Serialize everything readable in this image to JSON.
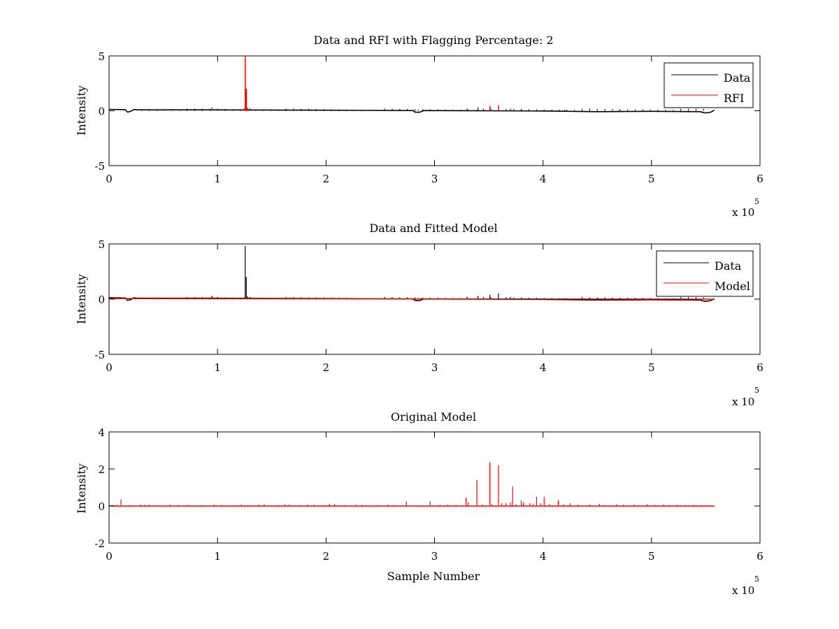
{
  "figure": {
    "background": "#ffffff"
  },
  "colors": {
    "data": "#000000",
    "rfi": "#ff0000",
    "model": "#ff0000"
  },
  "chart_data": [
    {
      "type": "line",
      "title": "Data and RFI with Flagging Percentage: 2",
      "xlabel": "",
      "ylabel": "Intensity",
      "xlim": [
        0,
        600000
      ],
      "ylim": [
        -5,
        5
      ],
      "xticks": [
        0,
        1,
        2,
        3,
        4,
        5,
        6
      ],
      "yticks": [
        -5,
        0,
        5
      ],
      "x_exponent": {
        "prefix": "x 10",
        "power": "5"
      },
      "grid": false,
      "legend": "top-right",
      "legend_entries": [
        "Data",
        "RFI"
      ],
      "series": [
        {
          "name": "Data",
          "color": "#000000",
          "baseline": [
            [
              0,
              0.13
            ],
            [
              15000,
              0.1
            ],
            [
              17000,
              -0.12
            ],
            [
              20000,
              -0.05
            ],
            [
              23000,
              0.12
            ],
            [
              26000,
              0.08
            ],
            [
              90000,
              0.08
            ],
            [
              200000,
              0.05
            ],
            [
              280000,
              0.02
            ],
            [
              282000,
              -0.12
            ],
            [
              286000,
              -0.14
            ],
            [
              290000,
              0.02
            ],
            [
              300000,
              0.01
            ],
            [
              400000,
              -0.02
            ],
            [
              450000,
              -0.08
            ],
            [
              500000,
              -0.05
            ],
            [
              545000,
              -0.08
            ],
            [
              549000,
              -0.2
            ],
            [
              554000,
              -0.15
            ],
            [
              558000,
              0.05
            ]
          ],
          "end_x": 558000,
          "spikes": [
            [
              95000,
              0.3
            ],
            [
              100000,
              0.2
            ],
            [
              125500,
              4.8
            ],
            [
              126500,
              2.0
            ],
            [
              127500,
              0.25
            ],
            [
              130000,
              0.2
            ],
            [
              285000,
              0.1
            ],
            [
              330000,
              0.2
            ],
            [
              340000,
              0.3
            ],
            [
              351000,
              0.4
            ],
            [
              359000,
              0.5
            ],
            [
              370000,
              0.2
            ],
            [
              380000,
              0.15
            ],
            [
              420000,
              0.1
            ],
            [
              470000,
              0.05
            ]
          ]
        },
        {
          "name": "RFI",
          "color": "#ff0000",
          "baseline": [],
          "spikes": [
            [
              95000,
              0.25
            ],
            [
              100000,
              0.15
            ],
            [
              124500,
              0.2
            ],
            [
              125500,
              5.0
            ],
            [
              126500,
              2.0
            ],
            [
              127500,
              0.3
            ],
            [
              128500,
              0.15
            ],
            [
              351000,
              0.45
            ],
            [
              359000,
              0.45
            ],
            [
              370000,
              0.1
            ]
          ]
        }
      ]
    },
    {
      "type": "line",
      "title": "Data and Fitted Model",
      "xlabel": "",
      "ylabel": "Intensity",
      "xlim": [
        0,
        600000
      ],
      "ylim": [
        -5,
        5
      ],
      "xticks": [
        0,
        1,
        2,
        3,
        4,
        5,
        6
      ],
      "yticks": [
        -5,
        0,
        5
      ],
      "x_exponent": {
        "prefix": "x 10",
        "power": "5"
      },
      "grid": false,
      "legend": "top-right",
      "legend_entries": [
        "Data",
        "Model"
      ],
      "series": [
        {
          "name": "Data",
          "color": "#000000",
          "baseline": [
            [
              0,
              0.13
            ],
            [
              15000,
              0.1
            ],
            [
              17000,
              -0.12
            ],
            [
              20000,
              -0.05
            ],
            [
              23000,
              0.12
            ],
            [
              26000,
              0.08
            ],
            [
              90000,
              0.08
            ],
            [
              200000,
              0.05
            ],
            [
              280000,
              0.02
            ],
            [
              282000,
              -0.12
            ],
            [
              286000,
              -0.14
            ],
            [
              290000,
              0.02
            ],
            [
              300000,
              0.01
            ],
            [
              400000,
              -0.02
            ],
            [
              450000,
              -0.08
            ],
            [
              500000,
              -0.05
            ],
            [
              545000,
              -0.08
            ],
            [
              549000,
              -0.2
            ],
            [
              554000,
              -0.15
            ],
            [
              558000,
              0.05
            ]
          ],
          "end_x": 558000,
          "spikes": [
            [
              95000,
              0.3
            ],
            [
              100000,
              0.2
            ],
            [
              125500,
              4.8
            ],
            [
              126500,
              2.0
            ],
            [
              127500,
              0.25
            ],
            [
              130000,
              0.2
            ],
            [
              285000,
              0.1
            ],
            [
              330000,
              0.2
            ],
            [
              340000,
              0.3
            ],
            [
              351000,
              0.4
            ],
            [
              359000,
              0.5
            ],
            [
              370000,
              0.2
            ],
            [
              380000,
              0.15
            ],
            [
              420000,
              0.1
            ],
            [
              470000,
              0.05
            ]
          ]
        },
        {
          "name": "Model",
          "color": "#ff0000",
          "baseline": [
            [
              0,
              0.05
            ],
            [
              558000,
              0.0
            ]
          ],
          "end_x": 558000,
          "spikes": [
            [
              10000,
              0.1
            ],
            [
              23000,
              0.05
            ],
            [
              340000,
              0.05
            ],
            [
              351000,
              0.1
            ],
            [
              359000,
              0.08
            ],
            [
              470000,
              0.05
            ]
          ]
        }
      ]
    },
    {
      "type": "line",
      "title": "Original Model",
      "xlabel": "Sample Number",
      "ylabel": "Intensity",
      "xlim": [
        0,
        600000
      ],
      "ylim": [
        -2,
        4
      ],
      "xticks": [
        0,
        1,
        2,
        3,
        4,
        5,
        6
      ],
      "yticks": [
        -2,
        0,
        2,
        4
      ],
      "x_exponent": {
        "prefix": "x 10",
        "power": "5"
      },
      "grid": false,
      "legend": "none",
      "legend_entries": [],
      "series": [
        {
          "name": "Model",
          "color": "#ff0000",
          "baseline": [
            [
              0,
              0.0
            ],
            [
              558000,
              0.0
            ]
          ],
          "end_x": 558000,
          "spikes": [
            [
              3000,
              0.05
            ],
            [
              7000,
              0.07
            ],
            [
              11000,
              0.35
            ],
            [
              19000,
              0.05
            ],
            [
              29000,
              0.08
            ],
            [
              33000,
              0.06
            ],
            [
              37000,
              0.07
            ],
            [
              42000,
              0.05
            ],
            [
              56000,
              0.08
            ],
            [
              64000,
              0.05
            ],
            [
              73000,
              0.06
            ],
            [
              86000,
              0.05
            ],
            [
              97000,
              0.07
            ],
            [
              104000,
              0.06
            ],
            [
              118000,
              0.05
            ],
            [
              122000,
              0.08
            ],
            [
              128000,
              0.05
            ],
            [
              138000,
              0.07
            ],
            [
              143000,
              0.09
            ],
            [
              156000,
              0.05
            ],
            [
              162000,
              0.1
            ],
            [
              166000,
              0.08
            ],
            [
              176000,
              0.05
            ],
            [
              183000,
              0.08
            ],
            [
              189000,
              0.06
            ],
            [
              197000,
              0.05
            ],
            [
              203000,
              0.12
            ],
            [
              208000,
              0.1
            ],
            [
              217000,
              0.05
            ],
            [
              228000,
              0.07
            ],
            [
              233000,
              0.06
            ],
            [
              247000,
              0.05
            ],
            [
              257000,
              0.07
            ],
            [
              263000,
              0.05
            ],
            [
              274000,
              0.25
            ],
            [
              296000,
              0.25
            ],
            [
              305000,
              0.06
            ],
            [
              312000,
              0.08
            ],
            [
              320000,
              0.05
            ],
            [
              329000,
              0.45
            ],
            [
              331000,
              0.2
            ],
            [
              339000,
              1.4
            ],
            [
              344000,
              0.08
            ],
            [
              351000,
              2.35
            ],
            [
              353000,
              0.1
            ],
            [
              359000,
              2.2
            ],
            [
              362000,
              0.15
            ],
            [
              366000,
              0.15
            ],
            [
              370000,
              0.2
            ],
            [
              372000,
              1.05
            ],
            [
              375000,
              0.1
            ],
            [
              380000,
              0.3
            ],
            [
              382000,
              0.2
            ],
            [
              388000,
              0.15
            ],
            [
              391000,
              0.1
            ],
            [
              394000,
              0.5
            ],
            [
              398000,
              0.15
            ],
            [
              401000,
              0.5
            ],
            [
              406000,
              0.1
            ],
            [
              414000,
              0.3
            ],
            [
              419000,
              0.1
            ],
            [
              425000,
              0.15
            ],
            [
              432000,
              0.07
            ],
            [
              443000,
              0.08
            ],
            [
              452000,
              0.12
            ],
            [
              457000,
              0.05
            ],
            [
              468000,
              0.1
            ],
            [
              474000,
              0.07
            ],
            [
              484000,
              0.08
            ],
            [
              489000,
              0.05
            ],
            [
              496000,
              0.1
            ],
            [
              503000,
              0.06
            ],
            [
              511000,
              0.08
            ],
            [
              517000,
              0.05
            ],
            [
              524000,
              0.07
            ],
            [
              531000,
              0.05
            ],
            [
              539000,
              0.06
            ],
            [
              546000,
              0.05
            ]
          ]
        }
      ]
    }
  ]
}
